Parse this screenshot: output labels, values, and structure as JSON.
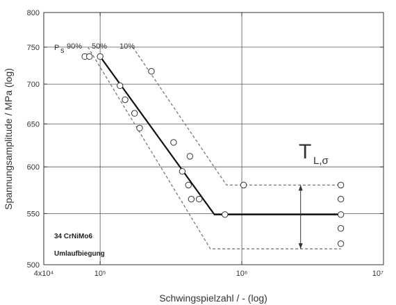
{
  "chart_data": {
    "type": "scatter",
    "xlabel": "Schwingspielzahl / - (log)",
    "ylabel": "Spannungsamplitude / MPa (log)",
    "xscale": "log",
    "yscale": "log",
    "xlim": [
      40000,
      10000000
    ],
    "ylim": [
      500,
      800
    ],
    "x_ticks": [
      {
        "value": 40000,
        "label": "4x10⁴"
      },
      {
        "value": 100000,
        "label": "10⁵"
      },
      {
        "value": 1000000,
        "label": "10⁶"
      },
      {
        "value": 10000000,
        "label": "10⁷"
      }
    ],
    "y_ticks": [
      {
        "value": 500,
        "label": "500"
      },
      {
        "value": 550,
        "label": "550"
      },
      {
        "value": 600,
        "label": "600"
      },
      {
        "value": 650,
        "label": "650"
      },
      {
        "value": 700,
        "label": "700"
      },
      {
        "value": 750,
        "label": "750"
      },
      {
        "value": 800,
        "label": "800"
      }
    ],
    "grid": true,
    "points": [
      {
        "x": 78000,
        "y": 737
      },
      {
        "x": 84000,
        "y": 737
      },
      {
        "x": 100000,
        "y": 737
      },
      {
        "x": 138000,
        "y": 698
      },
      {
        "x": 150000,
        "y": 680
      },
      {
        "x": 175000,
        "y": 663
      },
      {
        "x": 190000,
        "y": 645
      },
      {
        "x": 230000,
        "y": 717
      },
      {
        "x": 330000,
        "y": 628
      },
      {
        "x": 380000,
        "y": 595
      },
      {
        "x": 420000,
        "y": 580
      },
      {
        "x": 430000,
        "y": 612
      },
      {
        "x": 440000,
        "y": 565
      },
      {
        "x": 500000,
        "y": 565
      },
      {
        "x": 760000,
        "y": 549
      },
      {
        "x": 1030000,
        "y": 580
      },
      {
        "x": 5000000,
        "y": 580
      },
      {
        "x": 5000000,
        "y": 565
      },
      {
        "x": 5000000,
        "y": 549
      },
      {
        "x": 5000000,
        "y": 535
      },
      {
        "x": 5000000,
        "y": 520
      }
    ],
    "series": [
      {
        "name": "50%",
        "style": "solid",
        "points": [
          [
            100000,
            737
          ],
          [
            640000,
            549
          ],
          [
            5000000,
            549
          ]
        ]
      },
      {
        "name": "90%",
        "style": "dashed",
        "points": [
          [
            82000,
            750
          ],
          [
            600000,
            515
          ],
          [
            5000000,
            515
          ]
        ]
      },
      {
        "name": "10%",
        "style": "dashed",
        "points": [
          [
            170000,
            750
          ],
          [
            780000,
            580
          ],
          [
            5000000,
            580
          ]
        ]
      }
    ],
    "annotations": {
      "ps_label": "P",
      "ps_sub": "s",
      "p90": "90%",
      "p50": "50%",
      "p10": "10%",
      "material": "34 CrNiMo6",
      "test": "Umlaufbiegung",
      "tl_main": "T",
      "tl_sub": "L,σ"
    },
    "scatter_range": {
      "x": 2600000,
      "y_low": 515,
      "y_high": 580
    }
  }
}
